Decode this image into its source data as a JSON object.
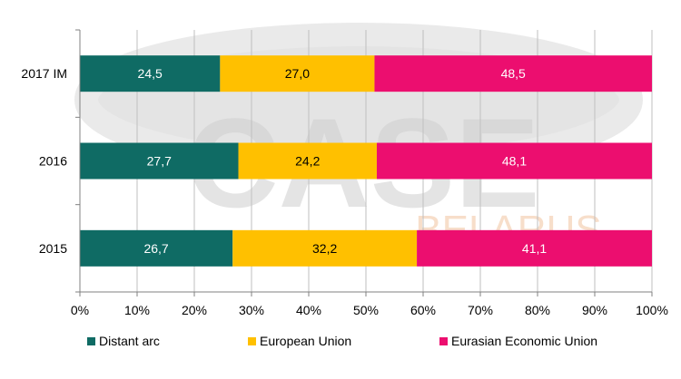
{
  "chart_data": {
    "type": "bar",
    "orientation": "horizontal",
    "stacked": true,
    "categories": [
      "2017 IM",
      "2016",
      "2015"
    ],
    "series": [
      {
        "name": "Distant arc",
        "color": "#0f6b64",
        "values": [
          24.5,
          27.7,
          26.7
        ],
        "labels": [
          "24,5",
          "27,7",
          "26,7"
        ]
      },
      {
        "name": "European Union",
        "color": "#ffc000",
        "values": [
          27.0,
          24.2,
          32.2
        ],
        "labels": [
          "27,0",
          "24,2",
          "32,2"
        ]
      },
      {
        "name": "Eurasian Economic Union",
        "color": "#ec0e6f",
        "values": [
          48.5,
          48.1,
          41.1
        ],
        "labels": [
          "48,5",
          "48,1",
          "41,1"
        ]
      }
    ],
    "xlim": [
      0,
      100
    ],
    "xticks": [
      "0%",
      "10%",
      "20%",
      "30%",
      "40%",
      "50%",
      "60%",
      "70%",
      "80%",
      "90%",
      "100%"
    ],
    "grid": true,
    "legend_position": "bottom",
    "title": "",
    "xlabel": "",
    "ylabel": ""
  },
  "watermark": {
    "logo_text": "CASE",
    "sub_text": "BELARUS"
  }
}
